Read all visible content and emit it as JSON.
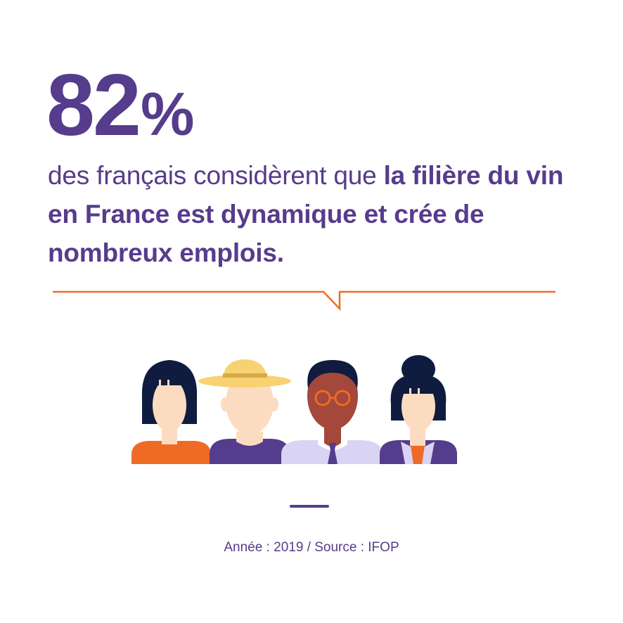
{
  "stat": {
    "number": "82",
    "unit": "%"
  },
  "description": {
    "regular": "des français considèrent que ",
    "bold": "la filière du vin en France est dynamique et crée de nombreux emplois."
  },
  "source": "Année : 2019 / Source : IFOP",
  "colors": {
    "primary": "#563c8c",
    "accent": "#ef6a24",
    "hair": "#0f1c3f",
    "skin": "#fcdcc1",
    "skin_dark": "#a3483a",
    "hat": "#f8d271",
    "lavender": "#d9d4f3"
  },
  "illustration": {
    "people": [
      "woman-bob-hair-icon",
      "man-straw-hat-icon",
      "man-glasses-icon",
      "woman-bun-icon"
    ]
  }
}
